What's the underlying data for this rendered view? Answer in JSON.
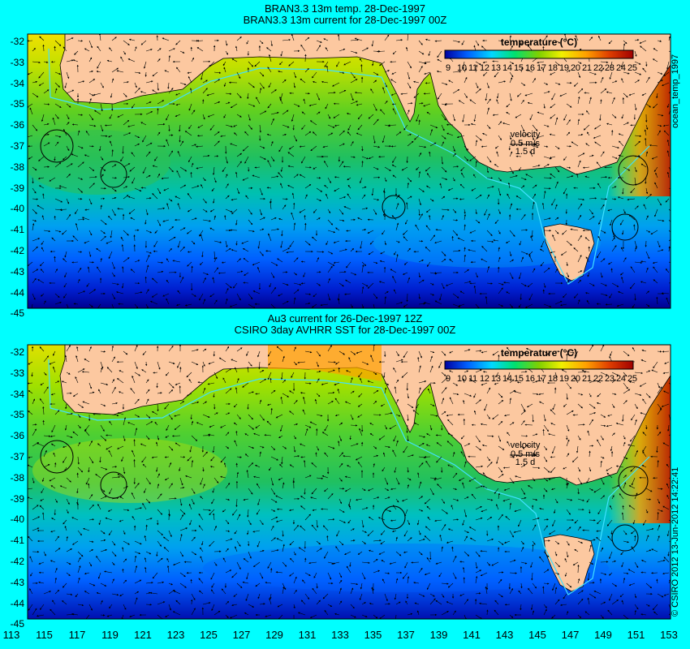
{
  "panel1": {
    "title_line1": "BRAN3.3 13m temp. 28-Dec-1997",
    "title_line2": "BRAN3.3 13m current for 28-Dec-1997 00Z",
    "side_label": "ocean_temp_1997"
  },
  "panel2": {
    "title_line1": "Au3 current for 26-Dec-1997 12Z",
    "title_line2": "CSIRO 3day AVHRR SST for 28-Dec-1997 00Z",
    "side_label": "© CSIRO 2012  13-Jun-2012 14:22:41"
  },
  "legend": {
    "title": "temperature (°C)",
    "scale_labels": [
      "9",
      "10",
      "11",
      "12",
      "13",
      "14",
      "15",
      "16",
      "17",
      "18",
      "19",
      "20",
      "21",
      "22",
      "23",
      "24",
      "25"
    ],
    "colors": [
      "#0000a0",
      "#0020d0",
      "#0060ff",
      "#00a0ff",
      "#00d8ff",
      "#00f0c0",
      "#00e070",
      "#30d030",
      "#80d000",
      "#c0e000",
      "#f0f000",
      "#ffd000",
      "#ffa000",
      "#ff7000",
      "#e04000",
      "#c02000",
      "#a00000"
    ]
  },
  "velocity": {
    "label": "velocity",
    "scale_value": "0.5 m/s",
    "scale_sub": "1.5 d"
  },
  "axes": {
    "lat_labels": [
      "-32",
      "-33",
      "-34",
      "-35",
      "-36",
      "-37",
      "-38",
      "-39",
      "-40",
      "-41",
      "-42",
      "-43",
      "-44",
      "-45"
    ],
    "lon_labels": [
      "113",
      "115",
      "117",
      "119",
      "121",
      "123",
      "125",
      "127",
      "129",
      "131",
      "133",
      "135",
      "137",
      "139",
      "141",
      "143",
      "145",
      "147",
      "149",
      "151",
      "153"
    ]
  },
  "colors": {
    "background": "#00ffff",
    "land": "#fcc8a0",
    "contour": "#40e0ff"
  }
}
